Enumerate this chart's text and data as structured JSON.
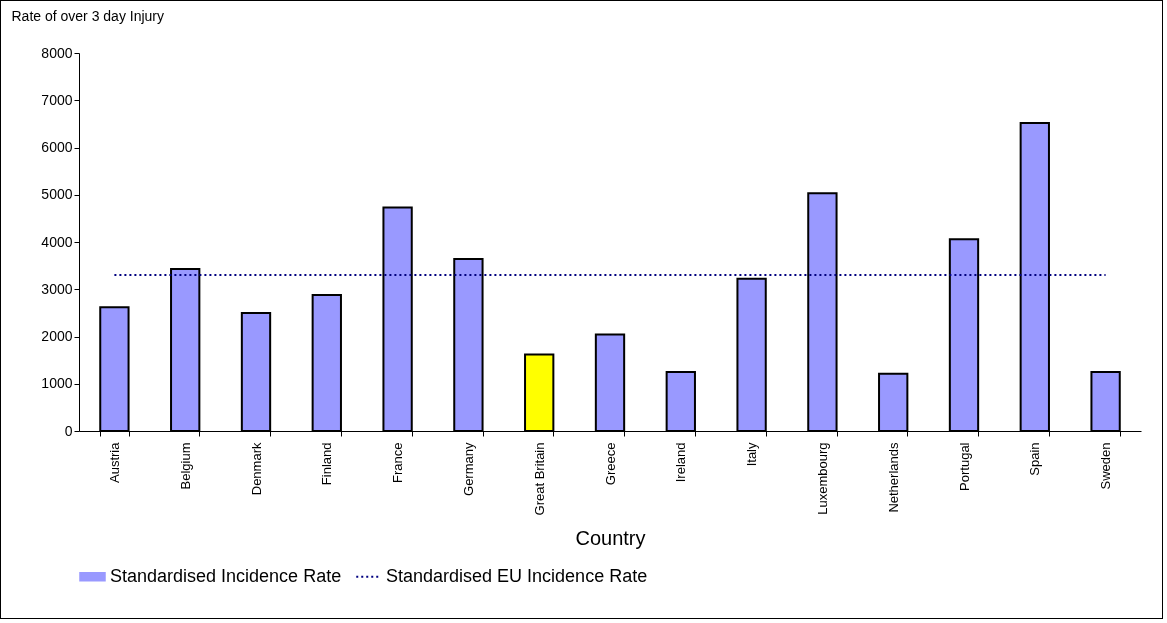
{
  "chart_data": {
    "type": "bar",
    "xlabel": "Country",
    "ylabel": "Rate of over 3 day Injury",
    "categories": [
      "Austria",
      "Belgium",
      "Denmark",
      "Finland",
      "France",
      "Germany",
      "Great Britain",
      "Greece",
      "Ireland",
      "Italy",
      "Luxembourg",
      "Netherlands",
      "Portugal",
      "Spain",
      "Sweden"
    ],
    "series": [
      {
        "name": "Standardised Incidence Rate",
        "color": "#9999ff",
        "colors": [
          "#9999ff",
          "#9999ff",
          "#9999ff",
          "#9999ff",
          "#9999ff",
          "#9999ff",
          "#ffff00",
          "#9999ff",
          "#9999ff",
          "#9999ff",
          "#9999ff",
          "#9999ff",
          "#9999ff",
          "#9999ff",
          "#9999ff"
        ],
        "values": [
          2620,
          3430,
          2500,
          2880,
          4730,
          3640,
          1620,
          2040,
          1250,
          3220,
          5030,
          1210,
          4060,
          6520,
          1250
        ]
      },
      {
        "name": "Standardised EU Incidence Rate",
        "type": "line",
        "color": "#000080",
        "line_style": "dotted",
        "values": [
          3300,
          3300,
          3300,
          3300,
          3300,
          3300,
          3300,
          3300,
          3300,
          3300,
          3300,
          3300,
          3300,
          3300,
          3300
        ]
      }
    ],
    "ylim": [
      0,
      8000
    ],
    "yticks": [
      0,
      1000,
      2000,
      3000,
      4000,
      5000,
      6000,
      7000,
      8000
    ],
    "grid": false,
    "legend": "bottom",
    "marker": "none"
  }
}
